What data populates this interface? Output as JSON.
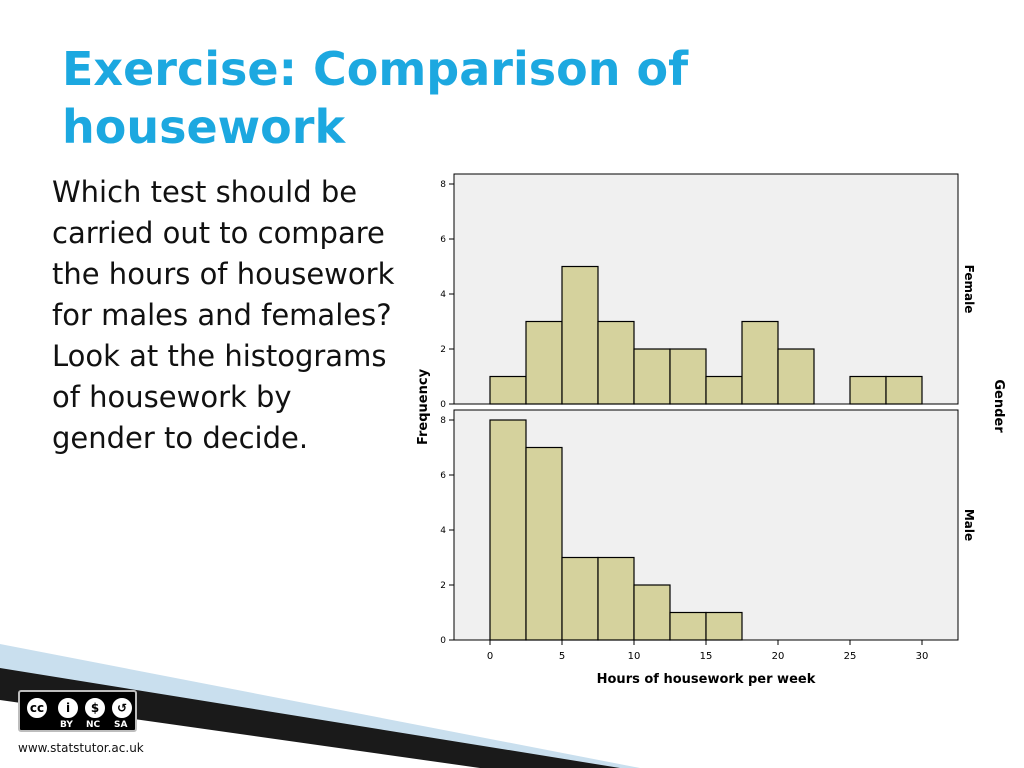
{
  "slide": {
    "title": "Exercise: Comparison of housework",
    "body": "Which test should be carried out to compare the hours of housework for males and females? Look at the histograms of housework by gender to decide.",
    "footer_url": "www.statstutor.ac.uk",
    "license": {
      "labels": [
        "BY",
        "NC",
        "SA"
      ]
    }
  },
  "colors": {
    "title": "#1ca8e0",
    "bar_fill": "#d5d29d",
    "plot_bg": "#f0f0f0",
    "corner_dark": "#1a1a1a",
    "corner_light": "#c9dfee"
  },
  "chart_data": {
    "type": "bar",
    "subtype": "histogram",
    "xlabel": "Hours of housework per week",
    "ylabel": "Frequency",
    "panel_variable": "Gender",
    "xlim": [
      -2.5,
      32.5
    ],
    "ylim": [
      0,
      8
    ],
    "xticks": [
      0,
      5,
      10,
      15,
      20,
      25,
      30
    ],
    "yticks": [
      0,
      2,
      4,
      6,
      8
    ],
    "bins": [
      [
        0,
        2.5
      ],
      [
        2.5,
        5
      ],
      [
        5,
        7.5
      ],
      [
        7.5,
        10
      ],
      [
        10,
        12.5
      ],
      [
        12.5,
        15
      ],
      [
        15,
        17.5
      ],
      [
        17.5,
        20
      ],
      [
        20,
        22.5
      ],
      [
        22.5,
        25
      ],
      [
        25,
        27.5
      ],
      [
        27.5,
        30
      ]
    ],
    "series": [
      {
        "name": "Female",
        "values": [
          1,
          3,
          5,
          3,
          2,
          2,
          1,
          3,
          2,
          0,
          1,
          1
        ]
      },
      {
        "name": "Male",
        "values": [
          8,
          7,
          3,
          3,
          2,
          1,
          1,
          0,
          0,
          0,
          0,
          0
        ]
      }
    ]
  }
}
